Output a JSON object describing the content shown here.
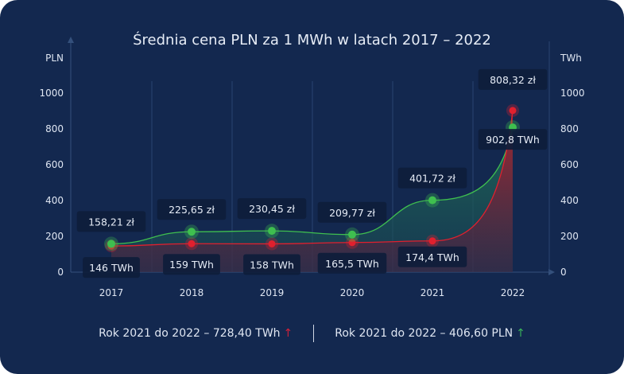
{
  "chart_data": {
    "type": "area",
    "title": "Średnia cena PLN za 1 MWh w latach 2017 – 2022",
    "ylabel_left": "PLN",
    "ylabel_right": "TWh",
    "categories": [
      "2017",
      "2018",
      "2019",
      "2020",
      "2021",
      "2022"
    ],
    "ylim": [
      0,
      1000
    ],
    "yticks": [
      "0",
      "200",
      "400",
      "600",
      "800",
      "1000"
    ],
    "grid": "vertical",
    "series": [
      {
        "values": [
          158.21,
          225.65,
          230.45,
          209.77,
          401.72,
          808.32
        ],
        "labels": [
          "158,21 zł",
          "225,65 zł",
          "230,45 zł",
          "209,77 zł",
          "401,72 zł",
          "808,32 zł"
        ],
        "color": "#3fbf4f"
      },
      {
        "values": [
          146,
          159,
          158,
          165.5,
          174.4,
          902.8
        ],
        "labels": [
          "146 TWh",
          "159 TWh",
          "158 TWh",
          "165,5 TWh",
          "174,4 TWh",
          "902,8 TWh"
        ],
        "color": "#e0202e"
      }
    ]
  },
  "footer": {
    "left": "Rok 2021 do 2022 – 728,40 TWh",
    "left_arrow": "↑",
    "right": "Rok 2021 do 2022 – 406,60 PLN",
    "right_arrow": "↑"
  }
}
